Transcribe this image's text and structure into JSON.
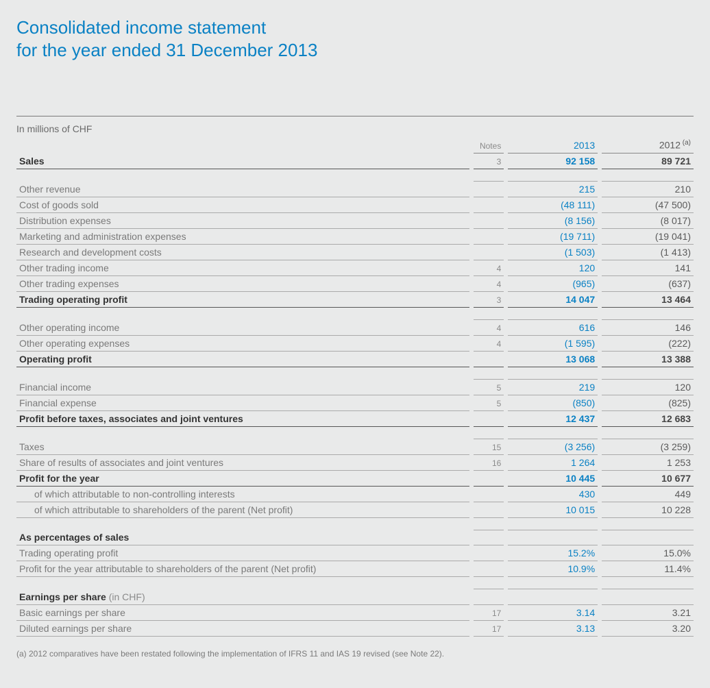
{
  "title_line1": "Consolidated income statement",
  "title_line2": "for the year ended 31 December 2013",
  "unit_label": "In millions of CHF",
  "header": {
    "notes": "Notes",
    "y2013": "2013",
    "y2012": "2012",
    "y2012_sup": " (a)"
  },
  "rows": [
    {
      "type": "bold",
      "label": "Sales",
      "note": "3",
      "v13": "92 158",
      "v12": "89 721"
    },
    {
      "type": "spacer"
    },
    {
      "type": "line",
      "label": "Other revenue",
      "note": "",
      "v13": "215",
      "v12": "210"
    },
    {
      "type": "line",
      "label": "Cost of goods sold",
      "note": "",
      "v13": "(48 111)",
      "v12": "(47 500)"
    },
    {
      "type": "line",
      "label": "Distribution expenses",
      "note": "",
      "v13": "(8 156)",
      "v12": "(8 017)"
    },
    {
      "type": "line",
      "label": "Marketing and administration expenses",
      "note": "",
      "v13": "(19 711)",
      "v12": "(19 041)"
    },
    {
      "type": "line",
      "label": "Research and development costs",
      "note": "",
      "v13": "(1 503)",
      "v12": "(1 413)"
    },
    {
      "type": "line",
      "label": "Other trading income",
      "note": "4",
      "v13": "120",
      "v12": "141"
    },
    {
      "type": "line",
      "label": "Other trading expenses",
      "note": "4",
      "v13": "(965)",
      "v12": "(637)"
    },
    {
      "type": "bold",
      "label": "Trading operating profit",
      "note": "3",
      "v13": "14 047",
      "v12": "13 464"
    },
    {
      "type": "spacer"
    },
    {
      "type": "line",
      "label": "Other operating income",
      "note": "4",
      "v13": "616",
      "v12": "146"
    },
    {
      "type": "line",
      "label": "Other operating expenses",
      "note": "4",
      "v13": "(1 595)",
      "v12": "(222)"
    },
    {
      "type": "bold",
      "label": "Operating profit",
      "note": "",
      "v13": "13 068",
      "v12": "13 388"
    },
    {
      "type": "spacer"
    },
    {
      "type": "line",
      "label": "Financial income",
      "note": "5",
      "v13": "219",
      "v12": "120"
    },
    {
      "type": "line",
      "label": "Financial expense",
      "note": "5",
      "v13": "(850)",
      "v12": "(825)"
    },
    {
      "type": "bold",
      "label": "Profit before taxes, associates and joint ventures",
      "note": "",
      "v13": "12 437",
      "v12": "12 683"
    },
    {
      "type": "spacer"
    },
    {
      "type": "line",
      "label": "Taxes",
      "note": "15",
      "v13": "(3 256)",
      "v12": "(3 259)"
    },
    {
      "type": "line",
      "label": "Share of results of associates and joint ventures",
      "note": "16",
      "v13": "1 264",
      "v12": "1 253"
    },
    {
      "type": "bold",
      "label": "Profit for the year",
      "note": "",
      "v13": "10 445",
      "v12": "10 677"
    },
    {
      "type": "line",
      "indent": true,
      "label": "of which attributable to non-controlling interests",
      "note": "",
      "v13": "430",
      "v12": "449"
    },
    {
      "type": "line",
      "indent": true,
      "label": "of which attributable to shareholders of the parent (Net profit)",
      "note": "",
      "v13": "10 015",
      "v12": "10 228"
    },
    {
      "type": "spacer"
    },
    {
      "type": "heading",
      "label": "As percentages of sales"
    },
    {
      "type": "line",
      "label": "Trading operating profit",
      "note": "",
      "v13": "15.2%",
      "v12": "15.0%"
    },
    {
      "type": "line",
      "label": "Profit for the year attributable to shareholders of the parent (Net profit)",
      "note": "",
      "v13": "10.9%",
      "v12": "11.4%"
    },
    {
      "type": "spacer"
    },
    {
      "type": "heading",
      "label": "Earnings per share",
      "sub": " (in CHF)"
    },
    {
      "type": "line",
      "label": "Basic earnings per share",
      "note": "17",
      "v13": "3.14",
      "v12": "3.21"
    },
    {
      "type": "line",
      "label": "Diluted earnings per share",
      "note": "17",
      "v13": "3.13",
      "v12": "3.20"
    }
  ],
  "footnote": "(a)  2012 comparatives have been restated following the implementation of IFRS 11 and IAS 19 revised (see Note 22).",
  "colors": {
    "accent": "#0a81c4",
    "text": "#5a5a5a",
    "muted": "#8a8a8a",
    "bg": "#e9eaea"
  }
}
